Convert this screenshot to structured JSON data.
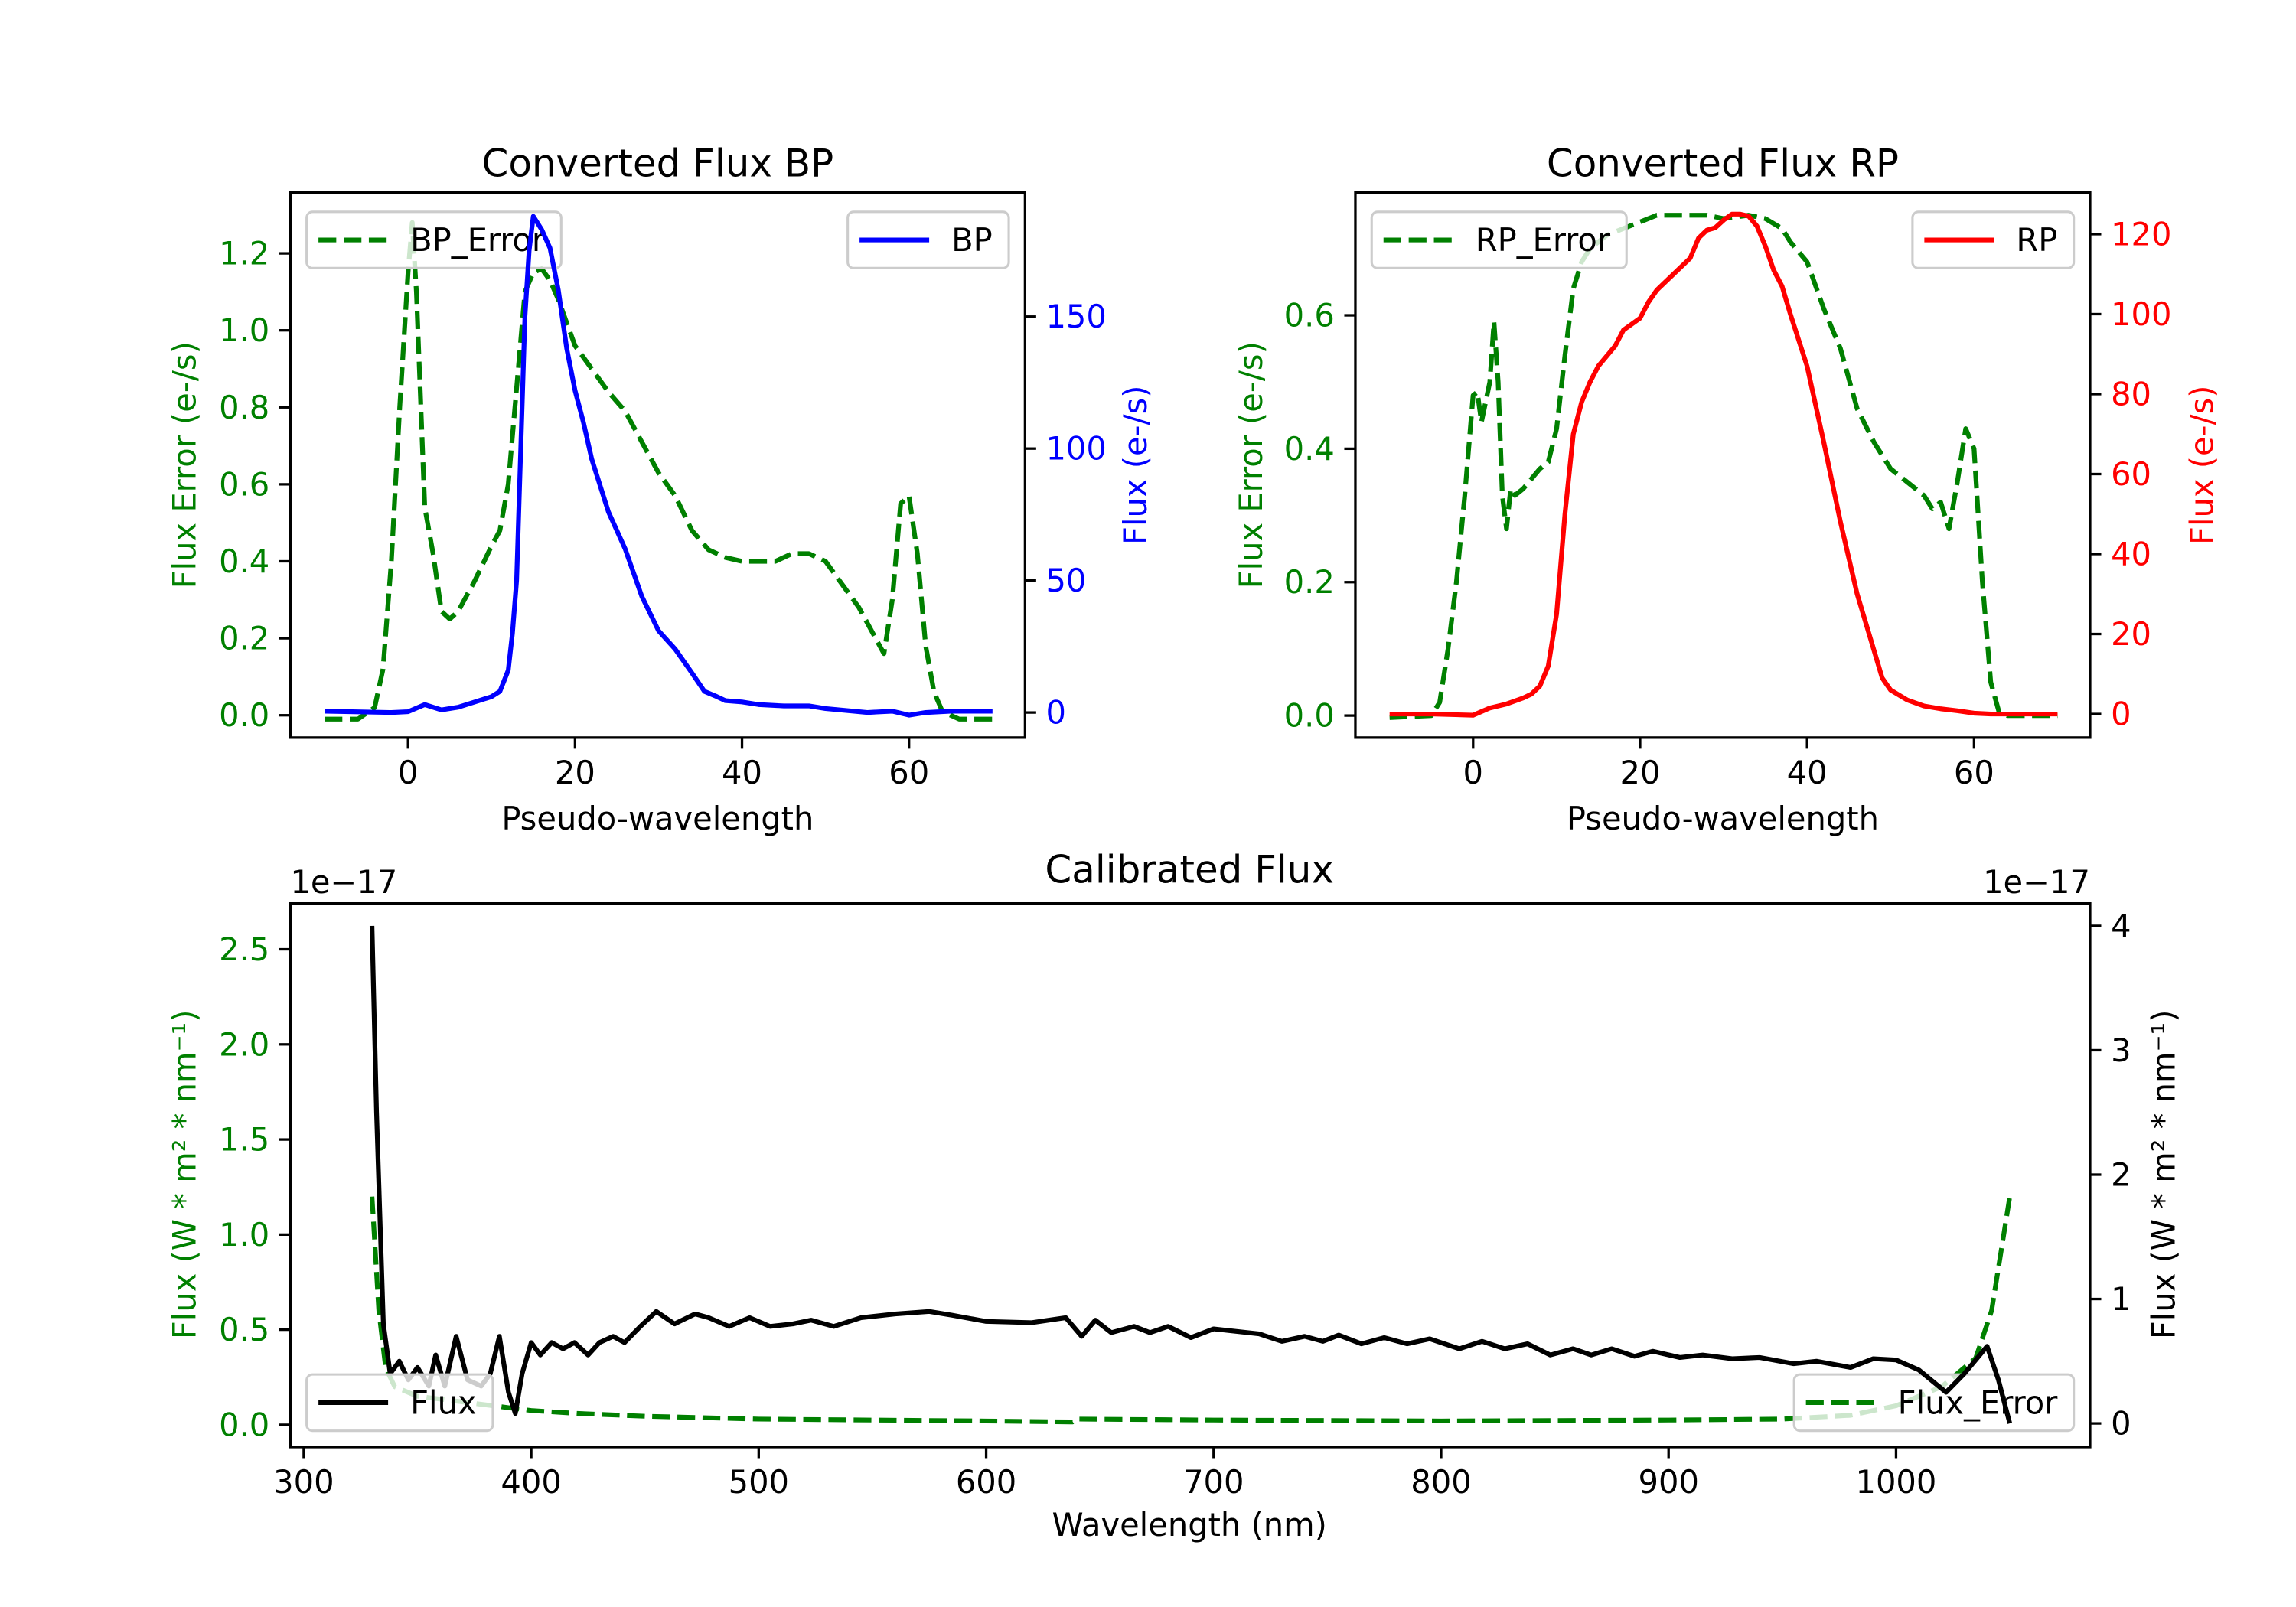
{
  "chart_data": [
    {
      "type": "line",
      "title": "Converted Flux BP",
      "xlabel": "Pseudo-wavelength",
      "ylabel_left": "Flux Error (e-/s)",
      "ylabel_right": "Flux (e-/s)",
      "left_color": "#008000",
      "right_color": "#0000ff",
      "xlim": [
        -14.1,
        73.9
      ],
      "ylim_left": [
        -0.058,
        1.358
      ],
      "ylim_right": [
        -9.5,
        197
      ],
      "xticks": [
        0,
        20,
        40,
        60
      ],
      "xtick_labels": [
        "0",
        "20",
        "40",
        "60"
      ],
      "yticks_left": [
        0,
        0.2,
        0.4,
        0.6,
        0.8,
        1.0,
        1.2
      ],
      "ytick_labels_left": [
        "0.0",
        "0.2",
        "0.4",
        "0.6",
        "0.8",
        "1.0",
        "1.2"
      ],
      "yticks_right": [
        0,
        50,
        100,
        150
      ],
      "ytick_labels_right": [
        "0",
        "50",
        "100",
        "150"
      ],
      "grid": false,
      "series": [
        {
          "name": "BP_Error",
          "axis": "left",
          "color": "#008000",
          "style": "dashed",
          "x": [
            -10,
            -6,
            -4,
            -3,
            -2,
            -1,
            0,
            0.5,
            1,
            2,
            3,
            4,
            5,
            6,
            8,
            10,
            11,
            12,
            13,
            14,
            15,
            16,
            17,
            18,
            19,
            20,
            22,
            24,
            26,
            28,
            30,
            32,
            34,
            36,
            38,
            40,
            42,
            44,
            46,
            48,
            50,
            52,
            54,
            56,
            57,
            58,
            59,
            60,
            61,
            62,
            63,
            64,
            66,
            70
          ],
          "y": [
            -0.01,
            -0.01,
            0.02,
            0.12,
            0.4,
            0.8,
            1.15,
            1.28,
            1.1,
            0.54,
            0.42,
            0.27,
            0.25,
            0.27,
            0.35,
            0.44,
            0.48,
            0.6,
            0.85,
            1.1,
            1.15,
            1.16,
            1.13,
            1.08,
            1.02,
            0.96,
            0.9,
            0.84,
            0.79,
            0.71,
            0.63,
            0.57,
            0.48,
            0.43,
            0.41,
            0.4,
            0.4,
            0.4,
            0.42,
            0.42,
            0.4,
            0.34,
            0.28,
            0.2,
            0.16,
            0.3,
            0.55,
            0.57,
            0.42,
            0.18,
            0.06,
            0.01,
            -0.01,
            -0.01
          ]
        },
        {
          "name": "BP",
          "axis": "right",
          "color": "#0000ff",
          "style": "solid",
          "x": [
            -10,
            -2,
            0,
            2,
            4,
            6,
            8,
            10,
            11,
            12,
            12.5,
            13,
            13.5,
            14,
            14.5,
            15,
            16,
            17,
            18,
            19,
            20,
            21,
            22,
            23,
            24,
            26,
            28,
            30,
            32,
            34,
            35.5,
            37,
            38,
            40,
            42,
            45,
            48,
            50,
            55,
            58,
            60,
            62,
            65,
            70
          ],
          "y": [
            0.5,
            0,
            0.3,
            3,
            1,
            2,
            4,
            6,
            8,
            16,
            30,
            50,
            100,
            150,
            175,
            188,
            183,
            176,
            160,
            138,
            122,
            110,
            96,
            86,
            76,
            62,
            44,
            31,
            24,
            15,
            8,
            6,
            4.5,
            4,
            3,
            2.5,
            2.5,
            1.5,
            0,
            0.5,
            -1,
            0,
            0.5,
            0.5
          ]
        }
      ],
      "legends": [
        {
          "loc": "upper left",
          "axis": "left",
          "entries": [
            "BP_Error"
          ]
        },
        {
          "loc": "upper right",
          "axis": "right",
          "entries": [
            "BP"
          ]
        }
      ]
    },
    {
      "type": "line",
      "title": "Converted Flux RP",
      "xlabel": "Pseudo-wavelength",
      "ylabel_left": "Flux Error (e-/s)",
      "ylabel_right": "Flux (e-/s)",
      "left_color": "#008000",
      "right_color": "#ff0000",
      "xlim": [
        -14.1,
        73.9
      ],
      "ylim_left": [
        -0.033,
        0.784
      ],
      "ylim_right": [
        -5.9,
        130.4
      ],
      "xticks": [
        0,
        20,
        40,
        60
      ],
      "xtick_labels": [
        "0",
        "20",
        "40",
        "60"
      ],
      "yticks_left": [
        0,
        0.2,
        0.4,
        0.6
      ],
      "ytick_labels_left": [
        "0.0",
        "0.2",
        "0.4",
        "0.6"
      ],
      "yticks_right": [
        0,
        20,
        40,
        60,
        80,
        100,
        120
      ],
      "ytick_labels_right": [
        "0",
        "20",
        "40",
        "60",
        "80",
        "100",
        "120"
      ],
      "grid": false,
      "series": [
        {
          "name": "RP_Error",
          "axis": "left",
          "color": "#008000",
          "style": "dashed",
          "x": [
            -10,
            -5,
            -4,
            -3,
            -2,
            -1,
            0,
            0.5,
            1,
            2,
            2.5,
            3,
            3.5,
            4,
            4.5,
            5,
            6,
            8,
            9,
            10,
            11,
            12,
            13,
            14,
            16,
            18,
            20,
            22,
            25,
            28,
            30,
            33,
            35,
            37,
            38,
            40,
            42,
            44,
            46,
            48,
            50,
            52,
            54,
            55,
            56,
            57,
            58,
            59,
            60,
            61,
            62,
            63,
            64,
            70
          ],
          "y": [
            -0.003,
            0,
            0.02,
            0.1,
            0.2,
            0.33,
            0.48,
            0.485,
            0.44,
            0.5,
            0.59,
            0.5,
            0.33,
            0.28,
            0.34,
            0.33,
            0.34,
            0.37,
            0.38,
            0.43,
            0.54,
            0.64,
            0.68,
            0.7,
            0.72,
            0.73,
            0.74,
            0.75,
            0.75,
            0.75,
            0.745,
            0.75,
            0.745,
            0.73,
            0.71,
            0.68,
            0.61,
            0.55,
            0.46,
            0.41,
            0.37,
            0.35,
            0.33,
            0.31,
            0.32,
            0.28,
            0.35,
            0.43,
            0.4,
            0.2,
            0.05,
            0.005,
            0,
            0
          ]
        },
        {
          "name": "RP",
          "axis": "right",
          "color": "#ff0000",
          "style": "solid",
          "x": [
            -10,
            -5,
            0,
            2,
            4,
            6,
            7,
            8,
            9,
            10,
            11,
            12,
            13,
            14,
            15,
            17,
            18,
            20,
            21,
            22,
            24,
            26,
            27,
            28,
            29,
            30,
            31,
            32,
            33,
            34,
            35,
            36,
            37,
            38,
            40,
            42,
            44,
            46,
            48,
            49,
            50,
            52,
            54,
            56,
            58,
            60,
            62,
            70
          ],
          "y": [
            0,
            0,
            -0.3,
            1.5,
            2.5,
            4,
            5,
            7,
            12,
            25,
            50,
            70,
            78,
            83,
            87,
            92,
            96,
            99,
            103,
            106,
            110,
            114,
            119,
            121,
            121.6,
            123.5,
            125,
            125,
            124.5,
            122,
            117,
            111,
            107,
            100,
            87,
            68,
            48,
            30,
            16,
            9,
            6,
            3.5,
            2,
            1.3,
            0.8,
            0.2,
            0,
            0
          ]
        }
      ],
      "legends": [
        {
          "loc": "upper left",
          "axis": "left",
          "entries": [
            "RP_Error"
          ]
        },
        {
          "loc": "upper right",
          "axis": "right",
          "entries": [
            "RP"
          ]
        }
      ]
    },
    {
      "type": "line",
      "title": "Calibrated Flux",
      "xlabel": "Wavelength (nm)",
      "ylabel_left": "Flux (W * m² * nm⁻¹)",
      "ylabel_right": "Flux (W * m² * nm⁻¹)",
      "left_color": "#008000",
      "right_color": "#000000",
      "offset_text_left": "1e−17",
      "offset_text_right": "1e−17",
      "xlim": [
        294.1,
        1085.3
      ],
      "ylim_left": [
        -0.117,
        2.741
      ],
      "ylim_right": [
        -0.19,
        4.18
      ],
      "xticks": [
        300,
        400,
        500,
        600,
        700,
        800,
        900,
        1000
      ],
      "xtick_labels": [
        "300",
        "400",
        "500",
        "600",
        "700",
        "800",
        "900",
        "1000"
      ],
      "yticks_left": [
        0,
        0.5,
        1.0,
        1.5,
        2.0,
        2.5
      ],
      "ytick_labels_left": [
        "0.0",
        "0.5",
        "1.0",
        "1.5",
        "2.0",
        "2.5"
      ],
      "yticks_right": [
        0,
        1,
        2,
        3,
        4
      ],
      "ytick_labels_right": [
        "0",
        "1",
        "2",
        "3",
        "4"
      ],
      "grid": false,
      "series": [
        {
          "name": "Flux",
          "axis": "right",
          "color": "#000000",
          "style": "solid",
          "x": [
            330,
            332,
            335,
            338,
            342,
            346,
            350,
            355,
            358,
            362,
            367,
            372,
            378,
            382,
            386,
            390,
            393,
            396,
            400,
            404,
            409,
            414,
            419,
            425,
            430,
            436,
            441,
            448,
            455,
            463,
            472,
            478,
            487,
            496,
            505,
            515,
            523,
            533,
            545,
            560,
            575,
            585,
            600,
            620,
            635,
            642,
            648,
            655,
            665,
            672,
            680,
            690,
            700,
            710,
            720,
            730,
            740,
            748,
            755,
            765,
            775,
            785,
            795,
            808,
            818,
            828,
            838,
            848,
            858,
            866,
            875,
            885,
            893,
            905,
            915,
            928,
            940,
            955,
            965,
            980,
            990,
            1000,
            1010,
            1022,
            1030,
            1040,
            1045,
            1050
          ],
          "y": [
            4.0,
            2.5,
            0.8,
            0.4,
            0.5,
            0.35,
            0.45,
            0.3,
            0.55,
            0.3,
            0.7,
            0.35,
            0.3,
            0.4,
            0.7,
            0.25,
            0.08,
            0.4,
            0.65,
            0.55,
            0.65,
            0.6,
            0.65,
            0.55,
            0.65,
            0.7,
            0.65,
            0.78,
            0.9,
            0.8,
            0.88,
            0.85,
            0.78,
            0.85,
            0.78,
            0.8,
            0.83,
            0.78,
            0.85,
            0.88,
            0.9,
            0.87,
            0.82,
            0.81,
            0.85,
            0.7,
            0.83,
            0.73,
            0.78,
            0.73,
            0.78,
            0.69,
            0.76,
            0.74,
            0.72,
            0.66,
            0.7,
            0.66,
            0.71,
            0.64,
            0.69,
            0.64,
            0.68,
            0.6,
            0.66,
            0.6,
            0.64,
            0.55,
            0.6,
            0.55,
            0.6,
            0.54,
            0.58,
            0.53,
            0.55,
            0.52,
            0.53,
            0.48,
            0.5,
            0.45,
            0.52,
            0.51,
            0.43,
            0.25,
            0.4,
            0.62,
            0.35,
            0.0
          ]
        },
        {
          "name": "Flux_Error",
          "axis": "left",
          "color": "#008000",
          "style": "dashed",
          "x": [
            330,
            333,
            336,
            340,
            350,
            370,
            390,
            400,
            420,
            450,
            500,
            600,
            638,
            640,
            700,
            800,
            900,
            950,
            980,
            1000,
            1020,
            1035,
            1042,
            1046,
            1050
          ],
          "y": [
            1.2,
            0.6,
            0.3,
            0.2,
            0.15,
            0.12,
            0.09,
            0.075,
            0.06,
            0.045,
            0.03,
            0.02,
            0.015,
            0.03,
            0.025,
            0.02,
            0.025,
            0.03,
            0.05,
            0.1,
            0.2,
            0.35,
            0.6,
            0.9,
            1.2
          ]
        }
      ],
      "legends": [
        {
          "loc": "lower left",
          "axis": "right",
          "entries": [
            "Flux"
          ]
        },
        {
          "loc": "lower right",
          "axis": "left",
          "entries": [
            "Flux_Error"
          ]
        }
      ]
    }
  ]
}
